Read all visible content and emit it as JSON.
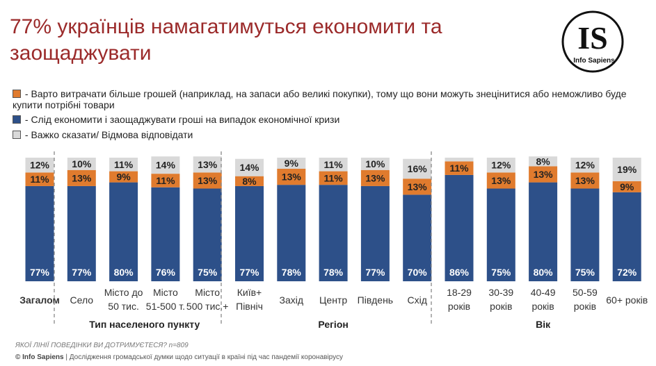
{
  "title": "77% українців намагатимуться економити та заощаджувати",
  "logo": {
    "letters": "IS",
    "name": "Info Sapiens"
  },
  "legend": [
    {
      "label": "- Варто витрачати більше грошей (наприклад, на запаси або великі покупки), тому що вони можуть знецінитися або неможливо буде купити потрібні товари",
      "color": "#e07b2e"
    },
    {
      "label": "- Слід економити і заощаджувати гроші на випадок економічної кризи",
      "color": "#2d5089"
    },
    {
      "label": "- Важко сказати/ Відмова відповідати",
      "color": "#d9d9d9"
    }
  ],
  "chart_data": {
    "type": "bar",
    "stacked": true,
    "ylim": [
      0,
      100
    ],
    "categories": [
      "Загалом",
      "Село",
      "Місто до 50 тис.",
      "Місто 51-500 т.",
      "Місто 500 тис.+",
      "Київ+ Північ",
      "Захід",
      "Центр",
      "Південь",
      "Схід",
      "18-29 років",
      "30-39 років",
      "40-49 років",
      "50-59 років",
      "60+ років"
    ],
    "category_lines": [
      [
        "Загалом"
      ],
      [
        "Село"
      ],
      [
        "Місто до",
        "50 тис."
      ],
      [
        "Місто",
        "51-500 т."
      ],
      [
        "Місто",
        "500 тис.+"
      ],
      [
        "Київ+",
        "Північ"
      ],
      [
        "Захід"
      ],
      [
        "Центр"
      ],
      [
        "Південь"
      ],
      [
        "Схід"
      ],
      [
        "18-29",
        "років"
      ],
      [
        "30-39",
        "років"
      ],
      [
        "40-49",
        "років"
      ],
      [
        "50-59",
        "років"
      ],
      [
        "60+ років"
      ]
    ],
    "groups": [
      {
        "label": "",
        "categories": [
          "Загалом"
        ]
      },
      {
        "label": "Тип населеного пункту",
        "categories": [
          "Село",
          "Місто до 50 тис.",
          "Місто 51-500 т.",
          "Місто 500 тис.+"
        ]
      },
      {
        "label": "Регіон",
        "categories": [
          "Київ+ Північ",
          "Захід",
          "Центр",
          "Південь",
          "Схід"
        ]
      },
      {
        "label": "Вік",
        "categories": [
          "18-29 років",
          "30-39 років",
          "40-49 років",
          "50-59 років",
          "60+ років"
        ]
      }
    ],
    "series": [
      {
        "name": "Слід економити і заощаджувати гроші на випадок економічної кризи",
        "color": "#2d5089",
        "values": [
          77,
          77,
          80,
          76,
          75,
          77,
          78,
          78,
          77,
          70,
          86,
          75,
          80,
          75,
          72
        ]
      },
      {
        "name": "Варто витрачати більше грошей",
        "color": "#e07b2e",
        "values": [
          11,
          13,
          9,
          11,
          13,
          8,
          13,
          11,
          13,
          13,
          11,
          13,
          13,
          13,
          9
        ]
      },
      {
        "name": "Важко сказати/ Відмова відповідати",
        "color": "#d9d9d9",
        "values": [
          12,
          10,
          11,
          14,
          13,
          14,
          9,
          11,
          10,
          16,
          3,
          12,
          8,
          12,
          19
        ]
      }
    ],
    "labels_hidden_below": 5
  },
  "question": "ЯКОЇ ЛІНІЇ ПОВЕДІНКИ ВИ ДОТРИМУЄТЕСЯ? n=809",
  "source": {
    "brand": "© Info Sapiens",
    "text": " | Дослідження громадської думки щодо ситуації в країні під час пандемії коронавірусу"
  }
}
